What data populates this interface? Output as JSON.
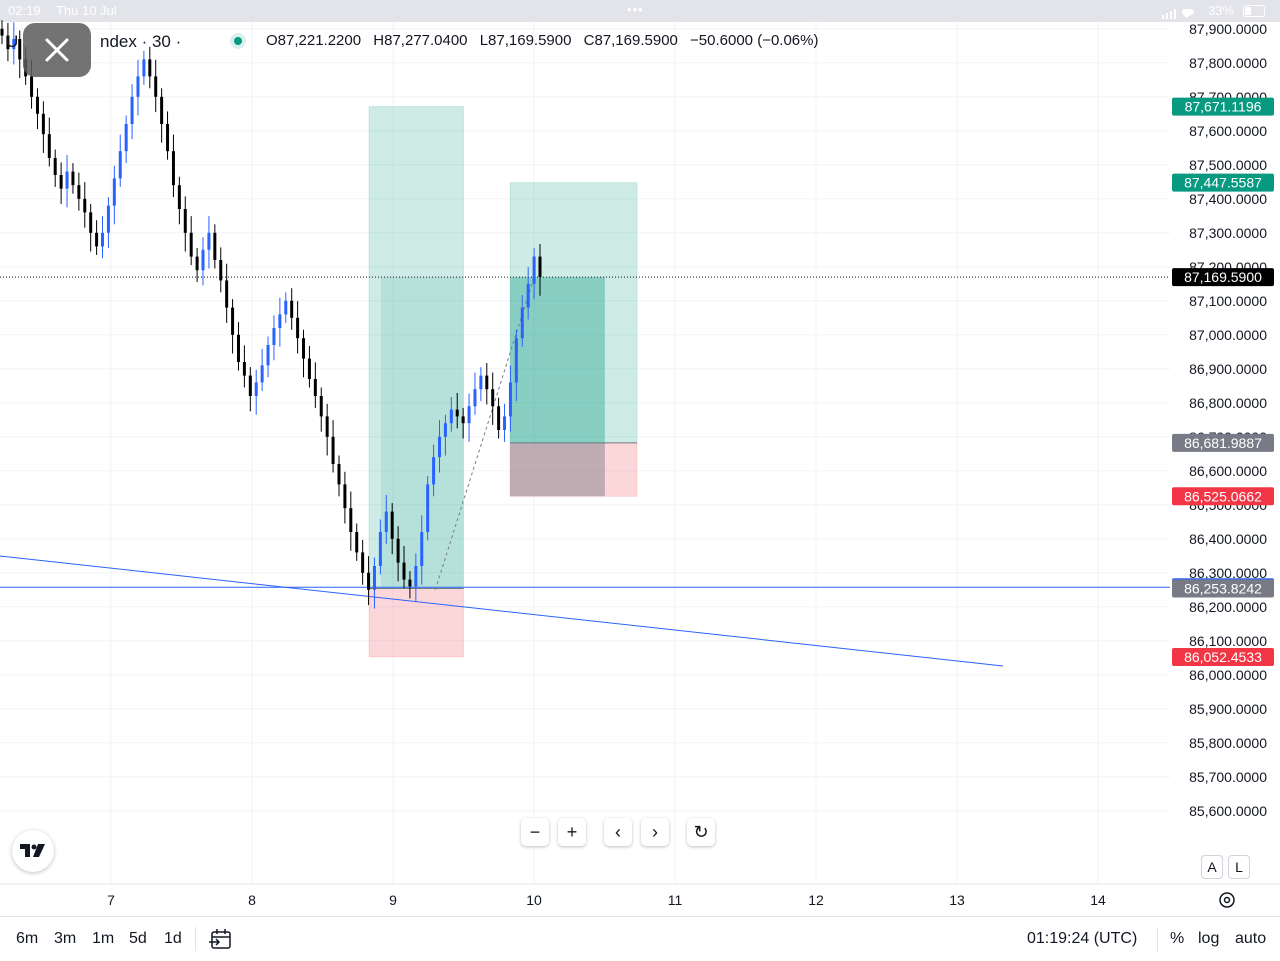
{
  "status_bar": {
    "time": "02:19",
    "date": "Thu 10 Jul",
    "dots": "•••",
    "battery": "33%"
  },
  "header": {
    "symbol_prefix": "U",
    "symbol_title": "ndex · 30 ·",
    "ohlc": {
      "open": "O87,221.2200",
      "high": "H87,277.0400",
      "low": "L87,169.5900",
      "close": "C87,169.5900",
      "change": "−50.6000 (−0.06%)"
    }
  },
  "colors": {
    "up_candle": "#2962ff",
    "down_candle": "#000000",
    "profit_zone": "#089981",
    "loss_zone": "#f23645",
    "trendline": "#2962ff",
    "last_price_tag": "#000000",
    "entry_tag": "#787b86"
  },
  "price_axis": {
    "labels": [
      "87,900.0000",
      "87,800.0000",
      "87,700.0000",
      "87,600.0000",
      "87,500.0000",
      "87,400.0000",
      "87,300.0000",
      "87,200.0000",
      "87,100.0000",
      "87,000.0000",
      "86,900.0000",
      "86,800.0000",
      "86,700.0000",
      "86,600.0000",
      "86,500.0000",
      "86,400.0000",
      "86,300.0000",
      "86,200.0000",
      "86,100.0000",
      "86,000.0000",
      "85,900.0000",
      "85,800.0000",
      "85,700.0000",
      "85,600.0000"
    ],
    "tags": [
      {
        "name": "target-1",
        "text": "87,671.1196",
        "price": 87671.1196,
        "color": "#089981"
      },
      {
        "name": "target-2",
        "text": "87,447.5587",
        "price": 87447.5587,
        "color": "#089981"
      },
      {
        "name": "last-price",
        "text": "87,169.5900",
        "price": 87169.59,
        "color": "#000000"
      },
      {
        "name": "entry-2",
        "text": "86,681.9887",
        "price": 86681.9887,
        "color": "#787b86"
      },
      {
        "name": "stop-2",
        "text": "86,525.0662",
        "price": 86525.0662,
        "color": "#f23645"
      },
      {
        "name": "horizontal-line",
        "text": "86,257.5992",
        "price": 86257.5992,
        "color": "#2962ff"
      },
      {
        "name": "entry-1",
        "text": "86,253.8242",
        "price": 86253.8242,
        "color": "#787b86"
      },
      {
        "name": "stop-1",
        "text": "86,052.4533",
        "price": 86052.4533,
        "color": "#f23645"
      }
    ]
  },
  "time_axis": {
    "labels": [
      "7",
      "8",
      "9",
      "10",
      "11",
      "12",
      "13",
      "14"
    ]
  },
  "chart_data": {
    "type": "candlestick",
    "interval": "30",
    "y_range": [
      85520,
      87920
    ],
    "x_range_days": [
      6.2,
      14.6
    ],
    "x_ticks": [
      7,
      8,
      9,
      10,
      11,
      12,
      13,
      14
    ],
    "last_price": 87169.59,
    "candles_close": [
      87880,
      87840,
      87870,
      87810,
      87760,
      87700,
      87650,
      87590,
      87520,
      87470,
      87430,
      87480,
      87440,
      87400,
      87360,
      87300,
      87260,
      87300,
      87380,
      87460,
      87540,
      87620,
      87700,
      87760,
      87810,
      87760,
      87700,
      87620,
      87540,
      87440,
      87370,
      87300,
      87230,
      87190,
      87250,
      87300,
      87220,
      87160,
      87080,
      87000,
      86920,
      86880,
      86820,
      86860,
      86910,
      86970,
      87020,
      87060,
      87100,
      87050,
      86990,
      86930,
      86870,
      86820,
      86760,
      86700,
      86620,
      86560,
      86490,
      86420,
      86360,
      86300,
      86250,
      86320,
      86420,
      86480,
      86400,
      86330,
      86280,
      86260,
      86320,
      86420,
      86560,
      86640,
      86700,
      86740,
      86780,
      86760,
      86740,
      86790,
      86840,
      86880,
      86840,
      86790,
      86720,
      86760,
      86860,
      86990,
      87080,
      87150,
      87230,
      87170
    ],
    "positions": [
      {
        "name": "long-position-1",
        "x_start_day": 8.83,
        "x_end_day": 9.5,
        "target": 87671.1196,
        "entry": 86253.8242,
        "stop": 86052.4533
      },
      {
        "name": "long-position-2",
        "x_start_day": 9.83,
        "x_end_day": 10.73,
        "target": 87447.5587,
        "entry": 86681.9887,
        "stop": 86525.0662
      }
    ],
    "horizontal_line": 86257.5992,
    "trendline": {
      "start": {
        "x_day": 6.2,
        "price": 86400
      },
      "end": {
        "x_day": 13.33,
        "price": 86080
      }
    },
    "grid": true
  },
  "controls": {
    "zoom_out": "−",
    "zoom_in": "+",
    "scroll_left": "‹",
    "scroll_right": "›",
    "reset": "↻",
    "auto_btn_a": "A",
    "auto_btn_l": "L"
  },
  "bottom_bar": {
    "ranges": [
      "6m",
      "3m",
      "1m",
      "5d",
      "1d"
    ],
    "clock": "01:19:24 (UTC)",
    "percent": "%",
    "log": "log",
    "auto": "auto"
  }
}
